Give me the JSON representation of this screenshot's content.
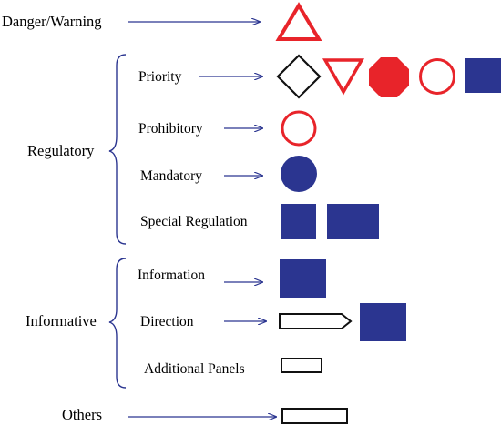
{
  "labels": {
    "danger_warning": "Danger/Warning",
    "regulatory": "Regulatory",
    "informative": "Informative",
    "others": "Others",
    "priority": "Priority",
    "prohibitory": "Prohibitory",
    "mandatory": "Mandatory",
    "special_regulation": "Special Regulation",
    "information": "Information",
    "direction": "Direction",
    "additional_panels": "Additional Panels"
  },
  "colors": {
    "red": "#e8242a",
    "blue": "#2b3590",
    "arrow": "#2b3590",
    "outline": "#111111"
  }
}
